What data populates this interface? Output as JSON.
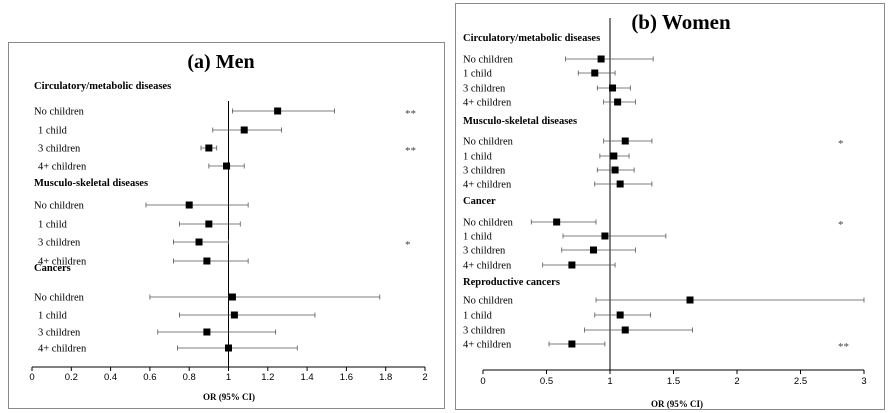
{
  "chart_data": [
    {
      "type": "forest",
      "title": "(a) Men",
      "xlabel": "OR (95% CI)",
      "xlim": [
        0,
        2
      ],
      "xticks": [
        "0",
        "0.2",
        "0.4",
        "0.6",
        "0.8",
        "1",
        "1.2",
        "1.4",
        "1.6",
        "1.8",
        "2"
      ],
      "reference_line": 1,
      "groups": [
        {
          "label": "Circulatory/metabolic diseases",
          "rows": [
            {
              "label": "No children",
              "or": 1.25,
              "lo": 1.02,
              "hi": 1.54,
              "sig": "**"
            },
            {
              "label": "1 child",
              "or": 1.08,
              "lo": 0.92,
              "hi": 1.27,
              "sig": ""
            },
            {
              "label": "3 children",
              "or": 0.9,
              "lo": 0.86,
              "hi": 0.94,
              "sig": "**"
            },
            {
              "label": "4+ children",
              "or": 0.99,
              "lo": 0.9,
              "hi": 1.08,
              "sig": ""
            }
          ]
        },
        {
          "label": "Musculo-skeletal diseases",
          "rows": [
            {
              "label": "No children",
              "or": 0.8,
              "lo": 0.58,
              "hi": 1.1,
              "sig": ""
            },
            {
              "label": "1 child",
              "or": 0.9,
              "lo": 0.75,
              "hi": 1.06,
              "sig": ""
            },
            {
              "label": "3 children",
              "or": 0.85,
              "lo": 0.72,
              "hi": 1.0,
              "sig": "*"
            },
            {
              "label": "4+ children",
              "or": 0.89,
              "lo": 0.72,
              "hi": 1.1,
              "sig": ""
            }
          ]
        },
        {
          "label": "Cancers",
          "rows": [
            {
              "label": "No children",
              "or": 1.02,
              "lo": 0.6,
              "hi": 1.77,
              "sig": ""
            },
            {
              "label": "1 child",
              "or": 1.03,
              "lo": 0.75,
              "hi": 1.44,
              "sig": ""
            },
            {
              "label": "3 children",
              "or": 0.89,
              "lo": 0.64,
              "hi": 1.24,
              "sig": ""
            },
            {
              "label": "4+ children",
              "or": 1.0,
              "lo": 0.74,
              "hi": 1.35,
              "sig": ""
            }
          ]
        }
      ]
    },
    {
      "type": "forest",
      "title": "(b) Women",
      "xlabel": "OR (95% CI)",
      "xlim": [
        0,
        3
      ],
      "xticks": [
        "0",
        "0.5",
        "1",
        "1.5",
        "2",
        "2.5",
        "3"
      ],
      "reference_line": 1,
      "groups": [
        {
          "label": "Circulatory/metabolic diseases",
          "rows": [
            {
              "label": "No children",
              "or": 0.93,
              "lo": 0.65,
              "hi": 1.34,
              "sig": ""
            },
            {
              "label": "1 child",
              "or": 0.88,
              "lo": 0.75,
              "hi": 1.04,
              "sig": ""
            },
            {
              "label": "3 children",
              "or": 1.02,
              "lo": 0.9,
              "hi": 1.16,
              "sig": ""
            },
            {
              "label": "4+ children",
              "or": 1.06,
              "lo": 0.95,
              "hi": 1.2,
              "sig": ""
            }
          ]
        },
        {
          "label": "Musculo-skeletal diseases",
          "rows": [
            {
              "label": "No children",
              "or": 1.12,
              "lo": 0.95,
              "hi": 1.33,
              "sig": "*"
            },
            {
              "label": "1 child",
              "or": 1.03,
              "lo": 0.92,
              "hi": 1.15,
              "sig": ""
            },
            {
              "label": "3 children",
              "or": 1.04,
              "lo": 0.9,
              "hi": 1.19,
              "sig": ""
            },
            {
              "label": "4+ children",
              "or": 1.08,
              "lo": 0.88,
              "hi": 1.33,
              "sig": ""
            }
          ]
        },
        {
          "label": "Cancer",
          "rows": [
            {
              "label": "No children",
              "or": 0.58,
              "lo": 0.38,
              "hi": 0.89,
              "sig": "*"
            },
            {
              "label": "1 child",
              "or": 0.96,
              "lo": 0.63,
              "hi": 1.44,
              "sig": ""
            },
            {
              "label": "3 children",
              "or": 0.87,
              "lo": 0.62,
              "hi": 1.2,
              "sig": ""
            },
            {
              "label": "4+ children",
              "or": 0.7,
              "lo": 0.47,
              "hi": 1.04,
              "sig": ""
            }
          ]
        },
        {
          "label": "Reproductive cancers",
          "rows": [
            {
              "label": "No children",
              "or": 1.63,
              "lo": 0.89,
              "hi": 3.0,
              "sig": ""
            },
            {
              "label": "1 child",
              "or": 1.08,
              "lo": 0.88,
              "hi": 1.32,
              "sig": ""
            },
            {
              "label": "3 children",
              "or": 1.12,
              "lo": 0.8,
              "hi": 1.65,
              "sig": ""
            },
            {
              "label": "4+ children",
              "or": 0.7,
              "lo": 0.52,
              "hi": 0.96,
              "sig": "**"
            }
          ]
        }
      ]
    }
  ]
}
